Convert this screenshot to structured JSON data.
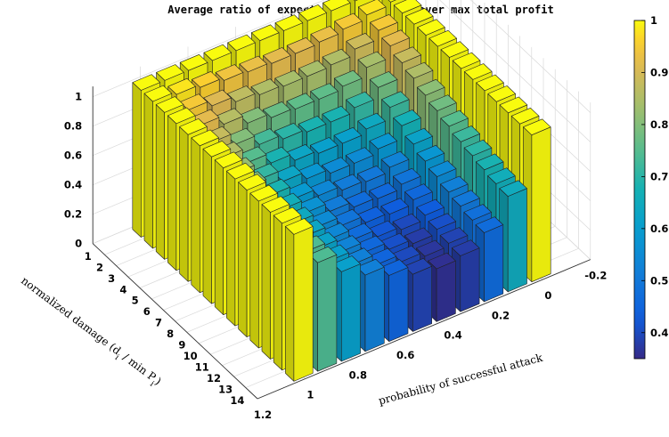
{
  "chart_data": {
    "type": "bar3",
    "title": "Average ratio of expected total profit over max total profit",
    "xlabel": "probability of successful attack",
    "ylabel": "normalized damage (d",
    "ylabel_sub": "i",
    "ylabel_tail": " / min P",
    "ylabel_sub2": "i",
    "ylabel_end": ")",
    "x_ticks": [
      "1.2",
      "1",
      "0.8",
      "0.6",
      "0.4",
      "0.2",
      "0",
      "-0.2"
    ],
    "y_ticks": [
      "1",
      "2",
      "3",
      "4",
      "5",
      "6",
      "7",
      "8",
      "9",
      "10",
      "11",
      "12",
      "13",
      "14"
    ],
    "z_ticks": [
      "0",
      "0.2",
      "0.4",
      "0.6",
      "0.8",
      "1"
    ],
    "zlim": [
      0,
      1
    ],
    "colormap": "parula",
    "colorbar": {
      "ticks": [
        "0.4",
        "0.5",
        "0.6",
        "0.7",
        "0.8",
        "0.9",
        "1"
      ],
      "min": 0.35,
      "max": 1.0
    },
    "grid": true,
    "p_values": [
      1.0,
      0.9,
      0.8,
      0.7,
      0.6,
      0.5,
      0.4,
      0.3,
      0.2,
      0.1,
      0.0
    ],
    "damage_values": [
      1,
      2,
      3,
      4,
      5,
      6,
      7,
      8,
      9,
      10,
      11,
      12,
      13,
      14
    ],
    "z": [
      [
        1.0,
        1.0,
        1.0,
        1.0,
        1.0,
        1.0,
        1.0,
        1.0,
        1.0,
        1.0,
        1.0
      ],
      [
        1.0,
        0.98,
        0.96,
        0.94,
        0.93,
        0.92,
        0.92,
        0.93,
        0.95,
        0.98,
        1.0
      ],
      [
        1.0,
        0.95,
        0.91,
        0.87,
        0.85,
        0.84,
        0.84,
        0.85,
        0.89,
        0.95,
        1.0
      ],
      [
        1.0,
        0.92,
        0.86,
        0.8,
        0.77,
        0.76,
        0.76,
        0.78,
        0.84,
        0.92,
        1.0
      ],
      [
        1.0,
        0.88,
        0.8,
        0.73,
        0.7,
        0.68,
        0.68,
        0.71,
        0.78,
        0.88,
        1.0
      ],
      [
        1.0,
        0.85,
        0.75,
        0.68,
        0.63,
        0.61,
        0.61,
        0.64,
        0.72,
        0.85,
        1.0
      ],
      [
        1.0,
        0.82,
        0.71,
        0.63,
        0.58,
        0.55,
        0.55,
        0.58,
        0.67,
        0.81,
        1.0
      ],
      [
        1.0,
        0.8,
        0.68,
        0.59,
        0.54,
        0.51,
        0.5,
        0.53,
        0.62,
        0.78,
        1.0
      ],
      [
        1.0,
        0.78,
        0.66,
        0.57,
        0.51,
        0.47,
        0.46,
        0.49,
        0.58,
        0.75,
        1.0
      ],
      [
        1.0,
        0.77,
        0.64,
        0.55,
        0.49,
        0.44,
        0.43,
        0.46,
        0.55,
        0.72,
        1.0
      ],
      [
        1.0,
        0.76,
        0.63,
        0.54,
        0.47,
        0.42,
        0.4,
        0.43,
        0.52,
        0.7,
        1.0
      ],
      [
        1.0,
        0.75,
        0.62,
        0.53,
        0.46,
        0.41,
        0.38,
        0.41,
        0.5,
        0.68,
        1.0
      ],
      [
        1.0,
        0.74,
        0.61,
        0.52,
        0.45,
        0.4,
        0.37,
        0.39,
        0.48,
        0.66,
        1.0
      ],
      [
        1.0,
        0.74,
        0.61,
        0.52,
        0.45,
        0.39,
        0.36,
        0.38,
        0.47,
        0.65,
        1.0
      ]
    ]
  }
}
